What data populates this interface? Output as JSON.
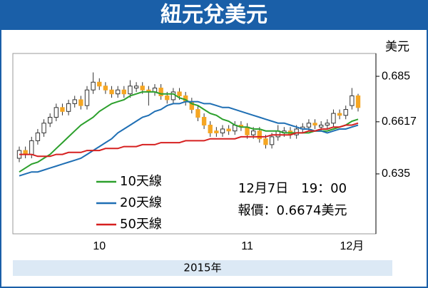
{
  "chart_data": {
    "type": "candlestick",
    "title": "紐元兌美元",
    "y_unit": "美元",
    "x_label": "2015年",
    "annotations": [
      "12月7日　19：00",
      "報價：0.6674美元"
    ],
    "xticks": [
      {
        "value": 13,
        "label": "10"
      },
      {
        "value": 37,
        "label": "11"
      },
      {
        "value": 54,
        "label": "12月"
      }
    ],
    "ylim": [
      0.6043,
      0.6967
    ],
    "yticks": [
      0.685,
      0.6617,
      0.635
    ],
    "up_color": "#ffffff",
    "down_color": "#f5a623",
    "open": [
      0.643,
      0.647,
      0.645,
      0.652,
      0.656,
      0.661,
      0.664,
      0.669,
      0.667,
      0.671,
      0.673,
      0.67,
      0.678,
      0.682,
      0.68,
      0.678,
      0.676,
      0.678,
      0.676,
      0.679,
      0.68,
      0.678,
      0.677,
      0.679,
      0.675,
      0.673,
      0.677,
      0.675,
      0.672,
      0.668,
      0.664,
      0.66,
      0.657,
      0.656,
      0.658,
      0.657,
      0.66,
      0.659,
      0.655,
      0.657,
      0.653,
      0.65,
      0.654,
      0.656,
      0.657,
      0.655,
      0.658,
      0.659,
      0.661,
      0.659,
      0.66,
      0.661,
      0.666,
      0.665,
      0.67,
      0.675
    ],
    "high": [
      0.649,
      0.649,
      0.654,
      0.658,
      0.663,
      0.666,
      0.671,
      0.671,
      0.673,
      0.675,
      0.675,
      0.68,
      0.687,
      0.684,
      0.682,
      0.68,
      0.68,
      0.68,
      0.683,
      0.682,
      0.682,
      0.68,
      0.681,
      0.681,
      0.677,
      0.679,
      0.679,
      0.677,
      0.674,
      0.67,
      0.666,
      0.662,
      0.659,
      0.66,
      0.66,
      0.662,
      0.662,
      0.661,
      0.659,
      0.659,
      0.655,
      0.656,
      0.66,
      0.659,
      0.659,
      0.66,
      0.661,
      0.663,
      0.663,
      0.662,
      0.663,
      0.668,
      0.668,
      0.67,
      0.679,
      0.676
    ],
    "low": [
      0.641,
      0.643,
      0.643,
      0.65,
      0.654,
      0.659,
      0.662,
      0.665,
      0.665,
      0.669,
      0.668,
      0.668,
      0.676,
      0.678,
      0.676,
      0.674,
      0.674,
      0.674,
      0.674,
      0.677,
      0.676,
      0.67,
      0.675,
      0.673,
      0.671,
      0.671,
      0.673,
      0.67,
      0.666,
      0.662,
      0.658,
      0.654,
      0.654,
      0.654,
      0.655,
      0.655,
      0.657,
      0.653,
      0.653,
      0.651,
      0.648,
      0.648,
      0.652,
      0.654,
      0.653,
      0.653,
      0.656,
      0.657,
      0.658,
      0.657,
      0.658,
      0.659,
      0.663,
      0.663,
      0.668,
      0.667
    ],
    "close": [
      0.647,
      0.645,
      0.652,
      0.656,
      0.661,
      0.664,
      0.669,
      0.667,
      0.671,
      0.673,
      0.67,
      0.678,
      0.682,
      0.68,
      0.678,
      0.676,
      0.678,
      0.676,
      0.68,
      0.68,
      0.678,
      0.677,
      0.679,
      0.675,
      0.673,
      0.677,
      0.675,
      0.672,
      0.668,
      0.664,
      0.66,
      0.656,
      0.656,
      0.658,
      0.657,
      0.66,
      0.659,
      0.655,
      0.657,
      0.653,
      0.65,
      0.654,
      0.657,
      0.657,
      0.655,
      0.658,
      0.659,
      0.661,
      0.66,
      0.66,
      0.661,
      0.666,
      0.665,
      0.668,
      0.675,
      0.669
    ],
    "series": [
      {
        "name": "10天線",
        "color": "#2ca02c",
        "values": [
          0.636,
          0.638,
          0.64,
          0.641,
          0.643,
          0.645,
          0.648,
          0.651,
          0.654,
          0.657,
          0.66,
          0.662,
          0.664,
          0.667,
          0.669,
          0.671,
          0.672,
          0.673,
          0.675,
          0.676,
          0.677,
          0.677,
          0.677,
          0.676,
          0.676,
          0.676,
          0.674,
          0.673,
          0.671,
          0.67,
          0.668,
          0.666,
          0.665,
          0.663,
          0.662,
          0.66,
          0.659,
          0.659,
          0.658,
          0.658,
          0.657,
          0.657,
          0.657,
          0.656,
          0.656,
          0.656,
          0.656,
          0.656,
          0.657,
          0.657,
          0.657,
          0.658,
          0.659,
          0.66,
          0.662,
          0.663
        ]
      },
      {
        "name": "20天線",
        "color": "#1f6fb4",
        "values": [
          0.634,
          0.635,
          0.636,
          0.636,
          0.637,
          0.638,
          0.639,
          0.64,
          0.641,
          0.642,
          0.643,
          0.645,
          0.647,
          0.649,
          0.651,
          0.653,
          0.656,
          0.658,
          0.66,
          0.662,
          0.664,
          0.665,
          0.667,
          0.668,
          0.67,
          0.671,
          0.671,
          0.672,
          0.672,
          0.672,
          0.671,
          0.671,
          0.67,
          0.669,
          0.669,
          0.668,
          0.667,
          0.666,
          0.665,
          0.664,
          0.663,
          0.662,
          0.661,
          0.661,
          0.66,
          0.659,
          0.658,
          0.658,
          0.657,
          0.657,
          0.656,
          0.657,
          0.658,
          0.658,
          0.659,
          0.66
        ]
      },
      {
        "name": "50天線",
        "color": "#d62020",
        "values": [
          0.645,
          0.645,
          0.645,
          0.644,
          0.644,
          0.644,
          0.645,
          0.645,
          0.646,
          0.646,
          0.646,
          0.647,
          0.647,
          0.647,
          0.648,
          0.648,
          0.648,
          0.649,
          0.649,
          0.649,
          0.65,
          0.65,
          0.65,
          0.651,
          0.651,
          0.651,
          0.651,
          0.652,
          0.652,
          0.652,
          0.652,
          0.653,
          0.653,
          0.653,
          0.653,
          0.653,
          0.654,
          0.654,
          0.654,
          0.654,
          0.654,
          0.655,
          0.655,
          0.655,
          0.655,
          0.656,
          0.656,
          0.657,
          0.657,
          0.658,
          0.658,
          0.659,
          0.659,
          0.66,
          0.66,
          0.661
        ]
      }
    ]
  }
}
